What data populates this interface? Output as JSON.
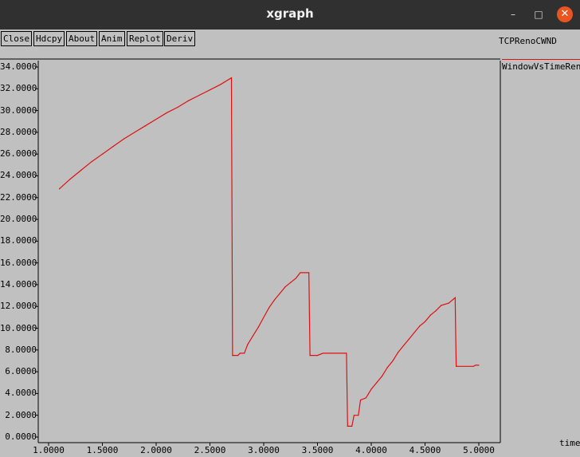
{
  "window": {
    "title": "xgraph",
    "minimize_glyph": "–",
    "maximize_glyph": "□",
    "close_glyph": "✕"
  },
  "toolbar": {
    "close_label": "Close",
    "hdcpy_label": "Hdcpy",
    "about_label": "About",
    "anim_label": "Anim",
    "replot_label": "Replot",
    "deriv_label": "Deriv"
  },
  "legend": {
    "title": "TCPRenoCWND",
    "series_label": "WindowVsTimeReno",
    "series_color": "#e01010"
  },
  "chart_data": {
    "type": "line",
    "title": "TCPRenoCWND",
    "xlabel": "time",
    "ylabel": "",
    "xlim": [
      1.0,
      5.0
    ],
    "ylim": [
      0.0,
      34.0
    ],
    "x_ticks": [
      "1.0000",
      "1.5000",
      "2.0000",
      "2.5000",
      "3.0000",
      "3.5000",
      "4.0000",
      "4.5000",
      "5.0000"
    ],
    "y_ticks": [
      "0.0000",
      "2.0000",
      "4.0000",
      "6.0000",
      "8.0000",
      "10.0000",
      "12.0000",
      "14.0000",
      "16.0000",
      "18.0000",
      "20.0000",
      "22.0000",
      "24.0000",
      "26.0000",
      "28.0000",
      "30.0000",
      "32.0000",
      "34.0000"
    ],
    "grid": false,
    "legend_position": "top-right",
    "series": [
      {
        "name": "WindowVsTimeReno",
        "color": "#e01010",
        "points": [
          [
            1.1,
            22.8
          ],
          [
            1.2,
            23.7
          ],
          [
            1.3,
            24.5
          ],
          [
            1.4,
            25.3
          ],
          [
            1.5,
            26.0
          ],
          [
            1.6,
            26.7
          ],
          [
            1.7,
            27.4
          ],
          [
            1.8,
            28.0
          ],
          [
            1.9,
            28.6
          ],
          [
            2.0,
            29.2
          ],
          [
            2.1,
            29.8
          ],
          [
            2.2,
            30.3
          ],
          [
            2.3,
            30.9
          ],
          [
            2.4,
            31.4
          ],
          [
            2.5,
            31.9
          ],
          [
            2.6,
            32.4
          ],
          [
            2.7,
            33.0
          ],
          [
            2.71,
            7.5
          ],
          [
            2.76,
            7.5
          ],
          [
            2.78,
            7.7
          ],
          [
            2.82,
            7.7
          ],
          [
            2.85,
            8.5
          ],
          [
            2.9,
            9.3
          ],
          [
            2.95,
            10.1
          ],
          [
            3.0,
            11.0
          ],
          [
            3.05,
            11.9
          ],
          [
            3.1,
            12.6
          ],
          [
            3.15,
            13.2
          ],
          [
            3.2,
            13.8
          ],
          [
            3.25,
            14.2
          ],
          [
            3.3,
            14.6
          ],
          [
            3.34,
            15.1
          ],
          [
            3.42,
            15.1
          ],
          [
            3.43,
            7.5
          ],
          [
            3.5,
            7.5
          ],
          [
            3.55,
            7.7
          ],
          [
            3.77,
            7.7
          ],
          [
            3.78,
            1.0
          ],
          [
            3.82,
            1.0
          ],
          [
            3.84,
            2.0
          ],
          [
            3.88,
            2.0
          ],
          [
            3.9,
            3.4
          ],
          [
            3.95,
            3.6
          ],
          [
            4.0,
            4.4
          ],
          [
            4.05,
            5.0
          ],
          [
            4.1,
            5.6
          ],
          [
            4.15,
            6.4
          ],
          [
            4.2,
            7.0
          ],
          [
            4.25,
            7.8
          ],
          [
            4.3,
            8.4
          ],
          [
            4.35,
            9.0
          ],
          [
            4.4,
            9.6
          ],
          [
            4.45,
            10.2
          ],
          [
            4.5,
            10.6
          ],
          [
            4.55,
            11.2
          ],
          [
            4.6,
            11.6
          ],
          [
            4.65,
            12.1
          ],
          [
            4.72,
            12.3
          ],
          [
            4.78,
            12.8
          ],
          [
            4.79,
            6.5
          ],
          [
            4.95,
            6.5
          ],
          [
            4.97,
            6.6
          ],
          [
            5.0,
            6.6
          ]
        ]
      }
    ]
  }
}
